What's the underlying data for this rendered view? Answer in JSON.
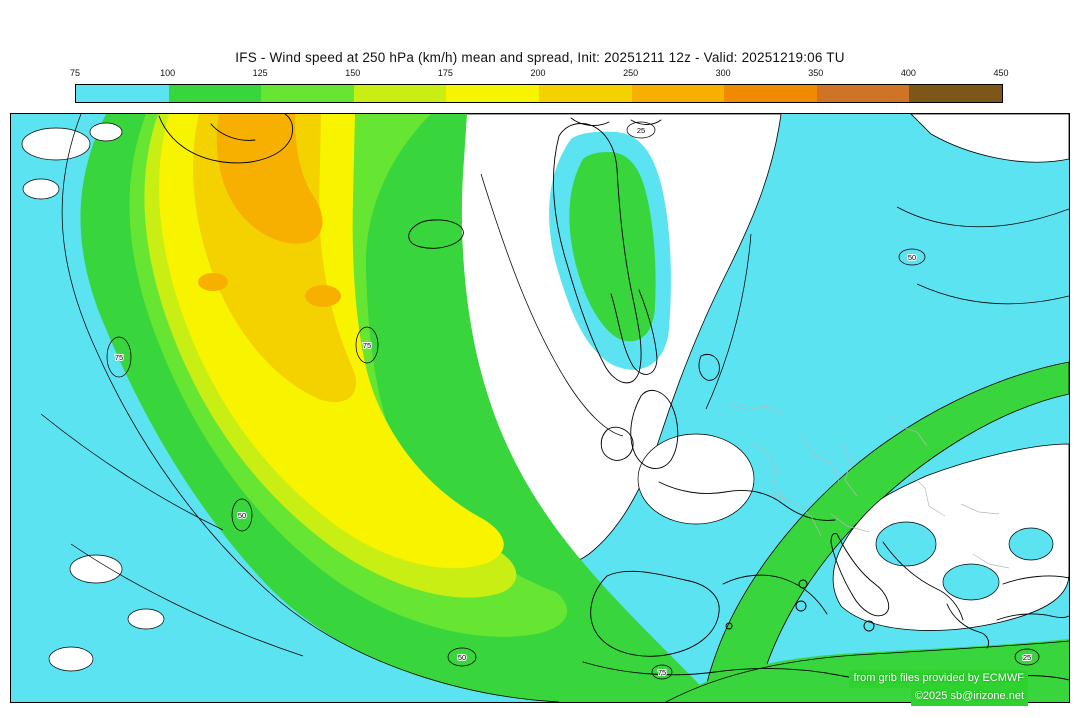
{
  "title": "IFS - Wind speed at 250 hPa (km/h) mean and spread, Init: 20251211 12z - Valid: 20251219:06 TU",
  "legend": {
    "ticks": [
      "75",
      "100",
      "125",
      "150",
      "175",
      "200",
      "250",
      "300",
      "350",
      "400",
      "450"
    ],
    "colors": [
      "#5ce3f2",
      "#38d53c",
      "#66e532",
      "#c8ee14",
      "#f8f400",
      "#f4d200",
      "#f7b000",
      "#f08a00",
      "#cf7427",
      "#7c5718"
    ]
  },
  "map": {
    "contour_labels": [
      {
        "value": "25"
      },
      {
        "value": "75"
      },
      {
        "value": "75"
      },
      {
        "value": "50"
      },
      {
        "value": "50"
      },
      {
        "value": "25"
      },
      {
        "value": "75"
      },
      {
        "value": "50"
      }
    ]
  },
  "attribution": {
    "line1": "from grib files provided by ECMWF",
    "line2": "©2025 sb@irizone.net"
  }
}
